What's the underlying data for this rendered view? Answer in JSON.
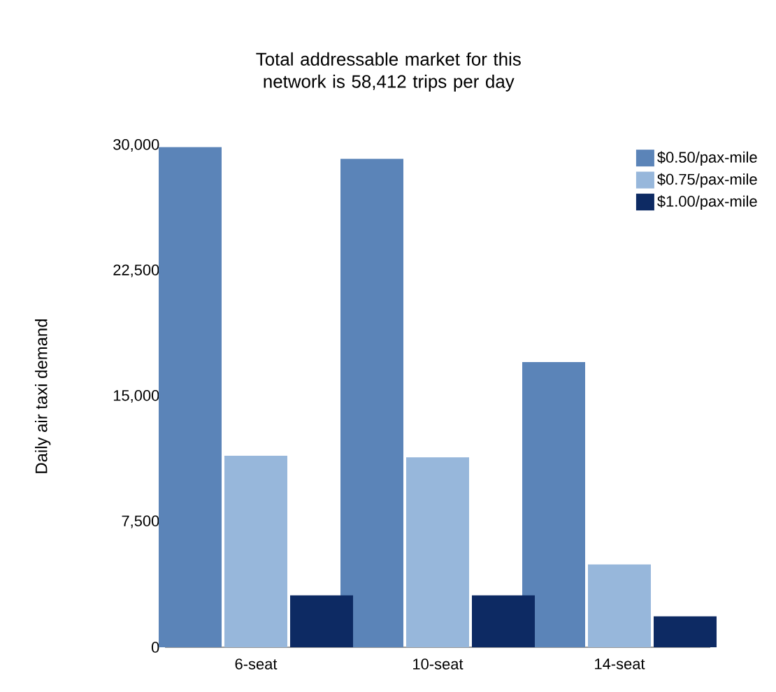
{
  "chart_data": {
    "type": "bar",
    "title": "Total addressable market for this network is 58,412 trips per day",
    "ylabel": "Daily air taxi demand",
    "categories": [
      "6-seat",
      "10-seat",
      "14-seat"
    ],
    "series": [
      {
        "name": "$0.50/pax-mile",
        "color": "#5b84b8",
        "values": [
          29900,
          29200,
          17050
        ]
      },
      {
        "name": "$0.75/pax-mile",
        "color": "#97b7db",
        "values": [
          11450,
          11350,
          4950
        ]
      },
      {
        "name": "$1.00/pax-mile",
        "color": "#0d2a63",
        "values": [
          3100,
          3100,
          1850
        ]
      }
    ],
    "ylim": [
      0,
      30000
    ],
    "yticks": [
      {
        "value": 0,
        "label": "0"
      },
      {
        "value": 7500,
        "label": "7,500"
      },
      {
        "value": 15000,
        "label": "15,000"
      },
      {
        "value": 22500,
        "label": "22,500"
      },
      {
        "value": 30000,
        "label": "30,000"
      }
    ],
    "legend": "top right"
  }
}
